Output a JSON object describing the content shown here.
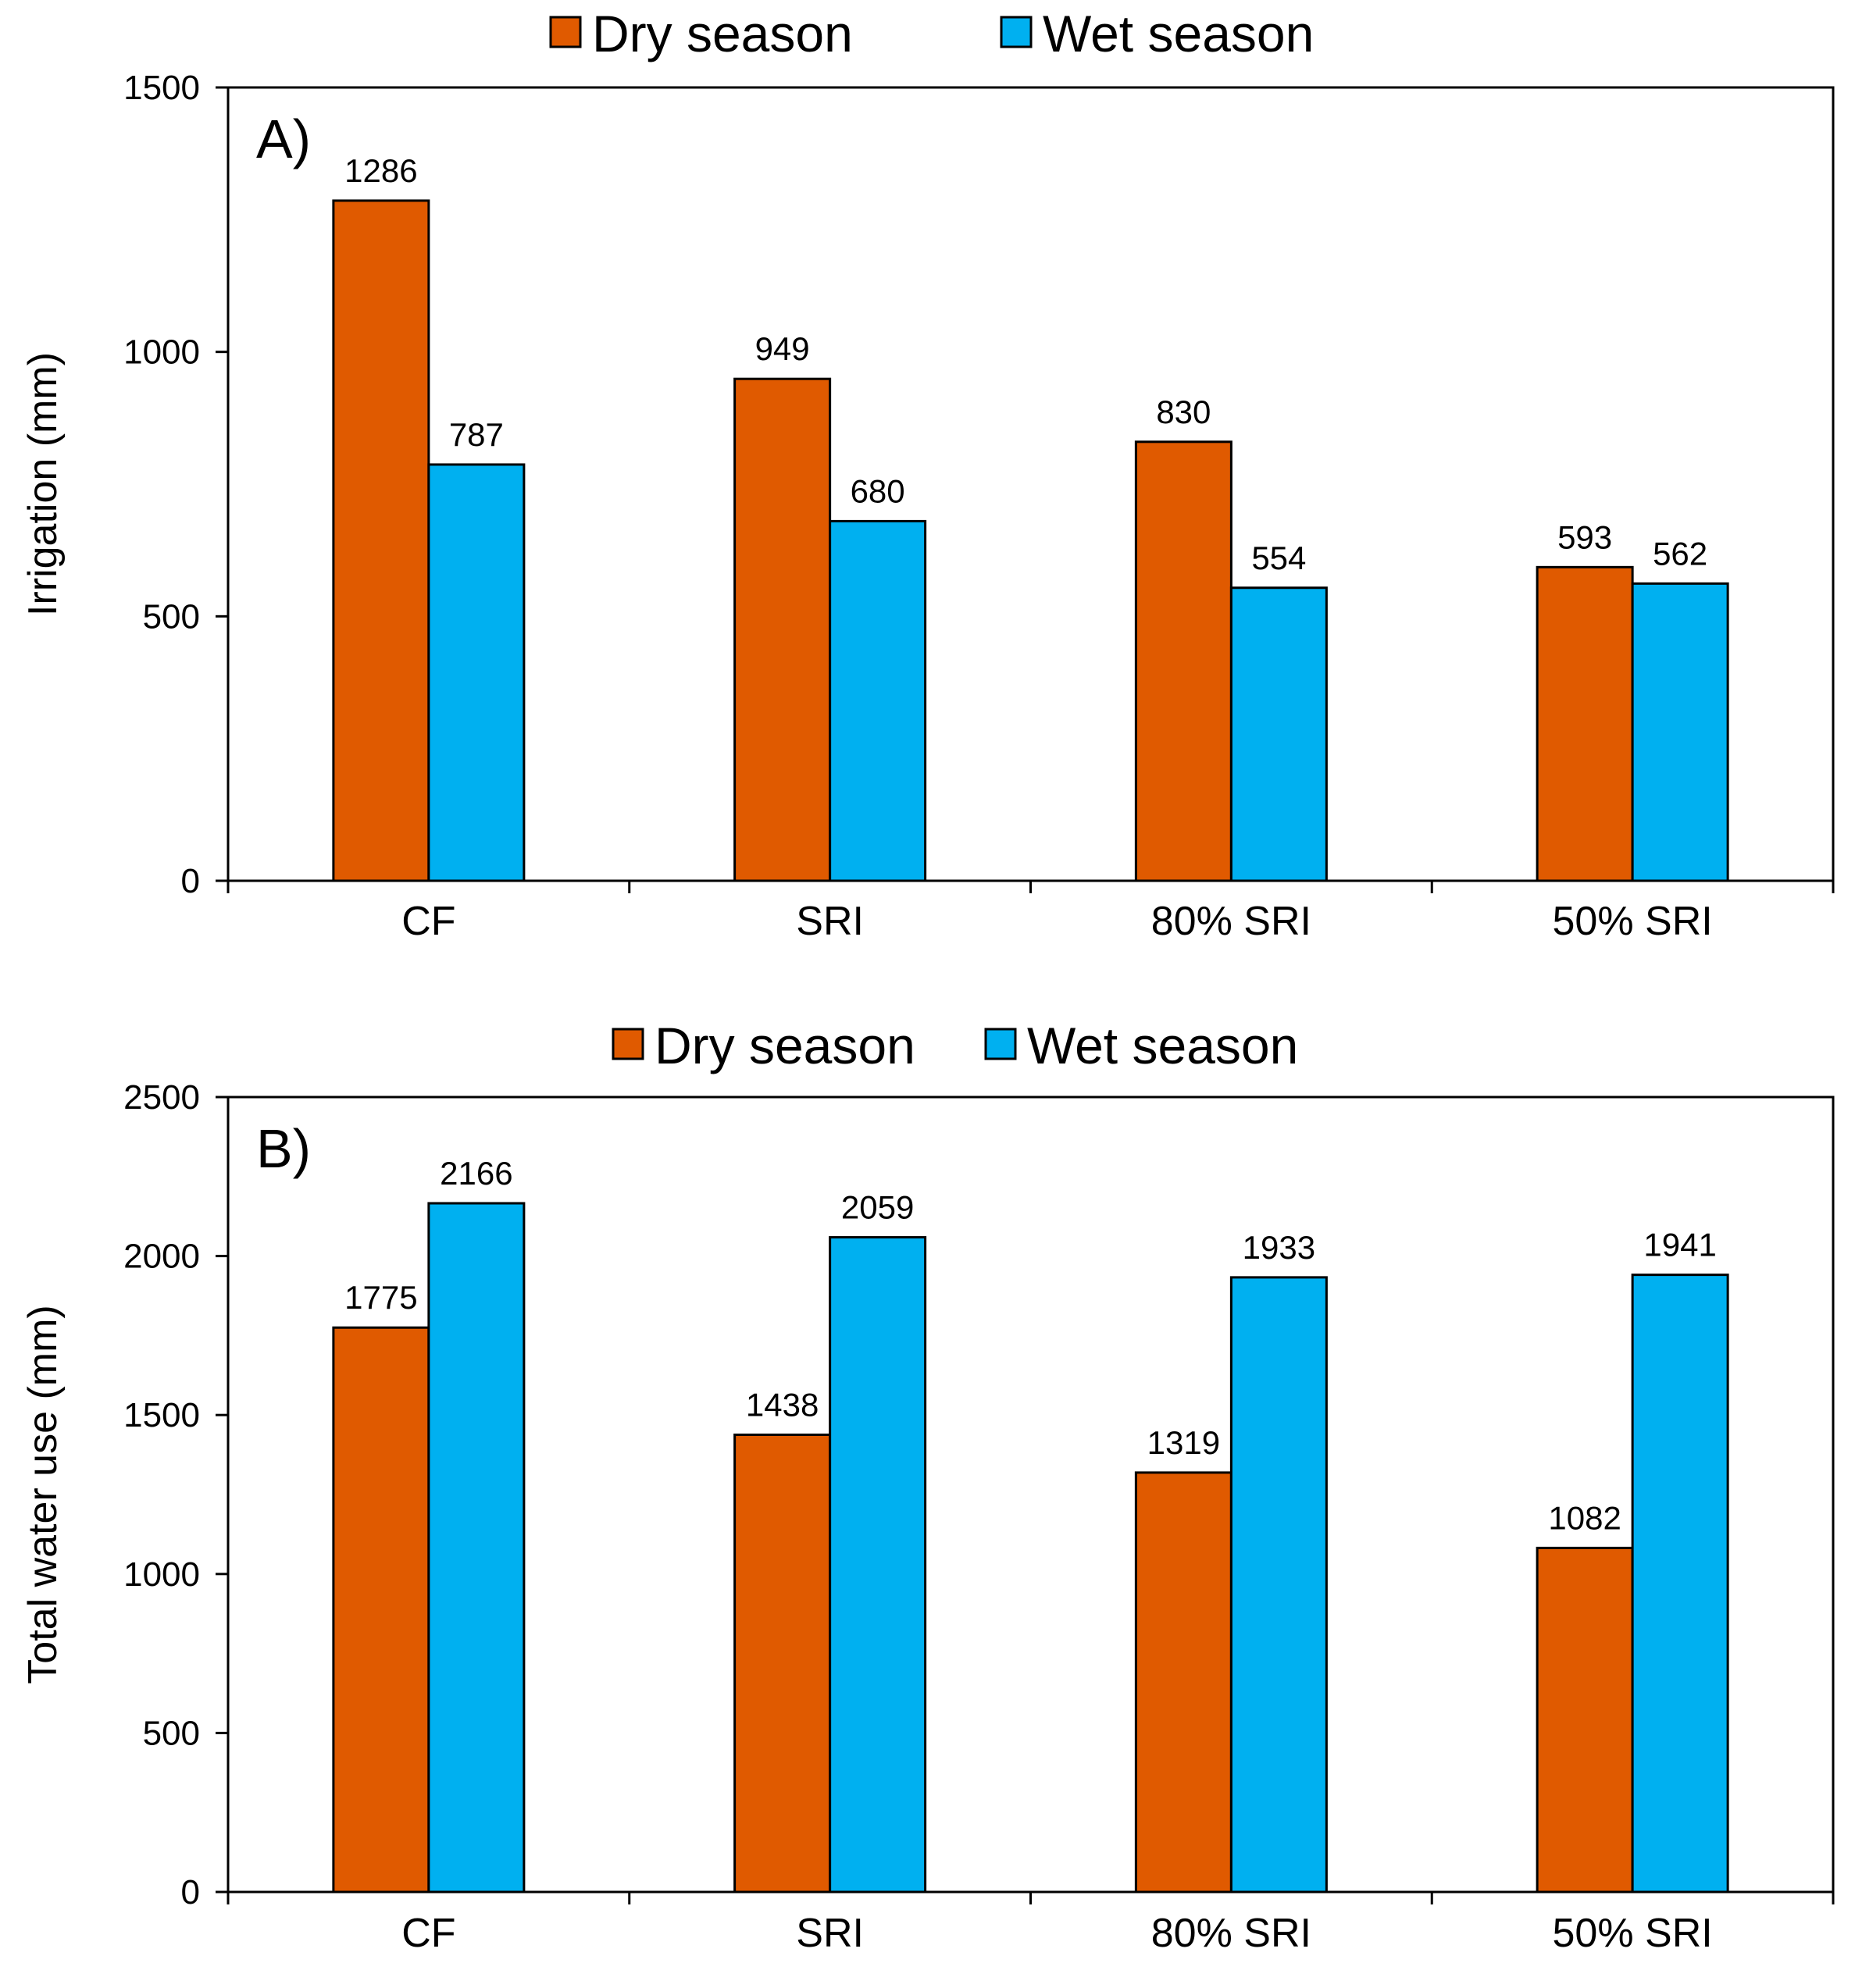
{
  "colors": {
    "dry": "#E05A00",
    "wet": "#00B0F0",
    "axis": "#000000"
  },
  "chart_data": [
    {
      "type": "bar",
      "panel_label": "A)",
      "categories": [
        "CF",
        "SRI",
        "80% SRI",
        "50% SRI"
      ],
      "series": [
        {
          "name": "Dry season",
          "values": [
            1286,
            949,
            830,
            593
          ]
        },
        {
          "name": "Wet season",
          "values": [
            787,
            680,
            554,
            562
          ]
        }
      ],
      "ylabel": "Irrigation (mm)",
      "xlabel": "",
      "ylim": [
        0,
        1500
      ],
      "yticks": [
        "0",
        "500",
        "1000",
        "1500"
      ],
      "ytick_values": [
        0,
        500,
        1000,
        1500
      ],
      "legend": [
        "Dry season",
        "Wet season"
      ],
      "legend_position": "top-center",
      "grid": false
    },
    {
      "type": "bar",
      "panel_label": "B)",
      "categories": [
        "CF",
        "SRI",
        "80% SRI",
        "50% SRI"
      ],
      "series": [
        {
          "name": "Dry season",
          "values": [
            1775,
            1438,
            1319,
            1082
          ]
        },
        {
          "name": "Wet season",
          "values": [
            2166,
            2059,
            1933,
            1941
          ]
        }
      ],
      "ylabel": "Total water use (mm)",
      "xlabel": "",
      "ylim": [
        0,
        2500
      ],
      "yticks": [
        "0",
        "500",
        "1000",
        "1500",
        "2000",
        "2500"
      ],
      "ytick_values": [
        0,
        500,
        1000,
        1500,
        2000,
        2500
      ],
      "legend": [
        "Dry season",
        "Wet season"
      ],
      "legend_position": "top-center",
      "grid": false
    }
  ]
}
